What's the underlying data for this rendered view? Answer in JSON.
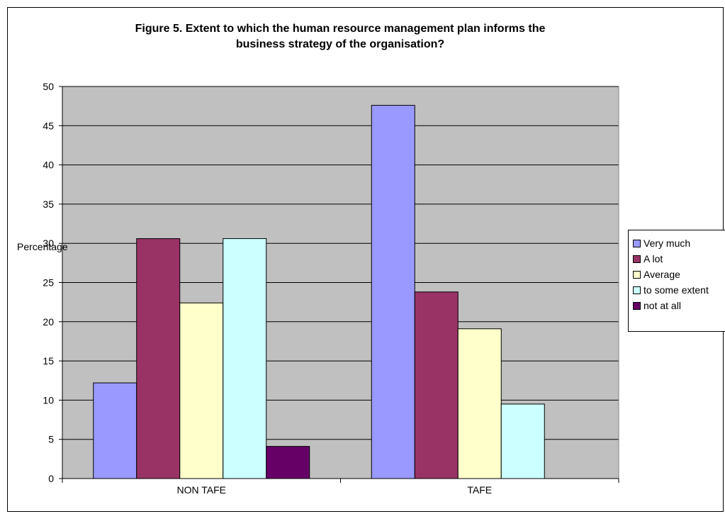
{
  "chart_data": {
    "type": "bar",
    "title_lines": [
      "Figure 5.  Extent to which the human resource management plan informs the",
      "business strategy of the organisation?"
    ],
    "xlabel": "",
    "ylabel": "Percentage",
    "ylim": [
      0,
      50
    ],
    "yticks": [
      0,
      5,
      10,
      15,
      20,
      25,
      30,
      35,
      40,
      45,
      50
    ],
    "categories": [
      "NON TAFE",
      "TAFE"
    ],
    "series": [
      {
        "name": "Very much",
        "color": "#9999FF",
        "values": [
          12.2,
          47.6
        ]
      },
      {
        "name": "A lot",
        "color": "#993366",
        "values": [
          30.6,
          23.8
        ]
      },
      {
        "name": "Average",
        "color": "#FFFFCC",
        "values": [
          22.4,
          19.1
        ]
      },
      {
        "name": "to some extent",
        "color": "#CCFFFF",
        "values": [
          30.6,
          9.5
        ]
      },
      {
        "name": "not at all",
        "color": "#660066",
        "values": [
          4.1,
          0
        ]
      }
    ],
    "plot_background": "#C0C0C0",
    "grid": true,
    "legend_position": "right"
  }
}
